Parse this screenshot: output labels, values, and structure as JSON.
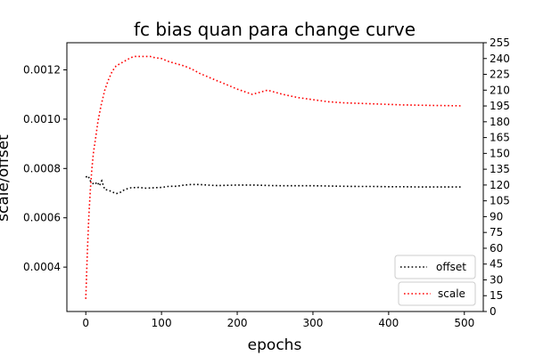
{
  "chart_data": {
    "type": "line",
    "title": "fc bias quan para change curve",
    "xlabel": "epochs",
    "ylabel": "scale/offset",
    "xlim": [
      -25,
      525
    ],
    "ylim_left": [
      0.00022,
      0.00131
    ],
    "ylim_right": [
      0,
      255
    ],
    "x_ticks": [
      0,
      100,
      200,
      300,
      400,
      500
    ],
    "y_left_ticks": [
      0.0004,
      0.0006,
      0.0008,
      0.001,
      0.0012
    ],
    "y_left_tick_labels": [
      "0.0004",
      "0.0006",
      "0.0008",
      "0.0010",
      "0.0012"
    ],
    "y_right_ticks": [
      0,
      15,
      30,
      45,
      60,
      75,
      90,
      105,
      120,
      135,
      150,
      165,
      180,
      195,
      210,
      225,
      240,
      255
    ],
    "grid": false,
    "series": [
      {
        "name": "offset",
        "axis": "left",
        "color": "#000000",
        "style": "dotted",
        "x": [
          0,
          3,
          6,
          9,
          12,
          15,
          18,
          21,
          25,
          30,
          35,
          40,
          45,
          50,
          55,
          60,
          70,
          80,
          90,
          100,
          110,
          120,
          130,
          140,
          150,
          160,
          170,
          180,
          200,
          220,
          240,
          260,
          280,
          300,
          320,
          340,
          360,
          380,
          400,
          420,
          440,
          460,
          480,
          495
        ],
        "y": [
          0.000765,
          0.00077,
          0.00075,
          0.00074,
          0.000735,
          0.000745,
          0.00073,
          0.00075,
          0.000715,
          0.000712,
          0.000705,
          0.000698,
          0.000702,
          0.000712,
          0.000718,
          0.000722,
          0.000723,
          0.00072,
          0.000722,
          0.000723,
          0.000728,
          0.000728,
          0.000733,
          0.000735,
          0.000735,
          0.000733,
          0.000731,
          0.000731,
          0.000733,
          0.000733,
          0.000731,
          0.00073,
          0.00073,
          0.00073,
          0.000729,
          0.000728,
          0.000727,
          0.000727,
          0.000726,
          0.000726,
          0.000725,
          0.000725,
          0.000725,
          0.000725
        ]
      },
      {
        "name": "scale",
        "axis": "right",
        "color": "#ff0000",
        "style": "dotted",
        "x": [
          0,
          2,
          4,
          6,
          8,
          10,
          13,
          16,
          20,
          25,
          30,
          35,
          40,
          45,
          50,
          55,
          60,
          65,
          70,
          75,
          80,
          85,
          90,
          100,
          110,
          120,
          130,
          140,
          150,
          160,
          170,
          180,
          200,
          220,
          240,
          260,
          280,
          300,
          320,
          340,
          360,
          380,
          400,
          420,
          440,
          460,
          480,
          495
        ],
        "y": [
          12,
          55,
          90,
          115,
          135,
          150,
          165,
          180,
          195,
          210,
          220,
          228,
          233,
          235,
          237,
          239,
          241,
          242,
          242,
          242,
          242,
          242,
          241,
          240,
          237,
          235,
          233,
          230,
          226,
          223,
          220,
          217,
          211,
          206,
          210,
          206,
          203,
          201,
          199,
          198,
          197.5,
          197,
          196.5,
          196,
          195.7,
          195.5,
          195.3,
          195.1
        ]
      }
    ],
    "legends": [
      {
        "label": "offset",
        "color": "#000000",
        "placement": "lower-right (upper box)"
      },
      {
        "label": "scale",
        "color": "#ff0000",
        "placement": "lower-right (lower box)"
      }
    ]
  }
}
